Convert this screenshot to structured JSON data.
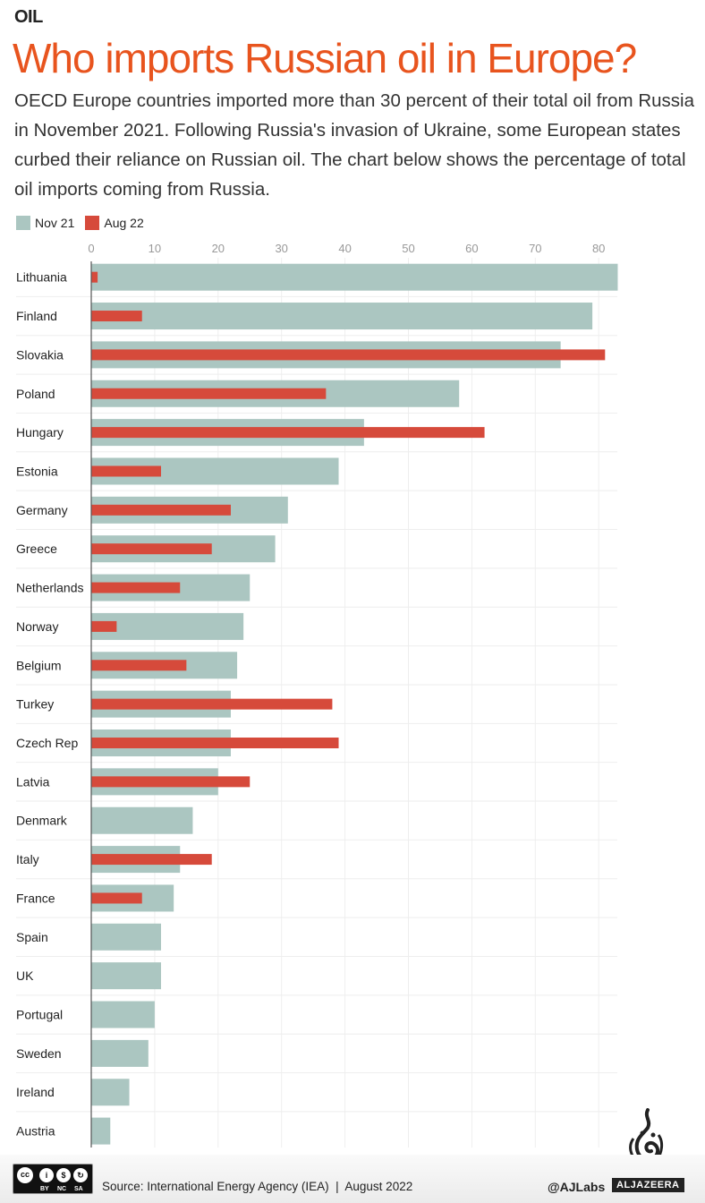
{
  "header": {
    "kicker": "OIL",
    "title": "Who imports Russian oil in Europe?",
    "subtitle": "OECD Europe countries imported more than 30 percent of their total oil from Russia in November 2021. Following Russia's invasion of Ukraine, some European states curbed their reliance on Russian oil. The chart below shows the percentage of total oil imports coming from Russia."
  },
  "legend": [
    {
      "label": "Nov 21",
      "color": "#abc6c1"
    },
    {
      "label": "Aug 22",
      "color": "#d64a3b"
    }
  ],
  "chart_data": {
    "type": "bar",
    "orientation": "horizontal",
    "title": "Who imports Russian oil in Europe?",
    "xlabel": "",
    "ylabel": "",
    "xlim": [
      0,
      83
    ],
    "xticks": [
      0,
      10,
      20,
      30,
      40,
      50,
      60,
      70,
      80
    ],
    "grid": true,
    "legend_position": "top-left",
    "categories": [
      "Lithuania",
      "Finland",
      "Slovakia",
      "Poland",
      "Hungary",
      "Estonia",
      "Germany",
      "Greece",
      "Netherlands",
      "Norway",
      "Belgium",
      "Turkey",
      "Czech Rep",
      "Latvia",
      "Denmark",
      "Italy",
      "France",
      "Spain",
      "UK",
      "Portugal",
      "Sweden",
      "Ireland",
      "Austria"
    ],
    "series": [
      {
        "name": "Nov 21",
        "color": "#abc6c1",
        "values": [
          83,
          79,
          74,
          58,
          43,
          39,
          31,
          29,
          25,
          24,
          23,
          22,
          22,
          20,
          16,
          14,
          13,
          11,
          11,
          10,
          9,
          6,
          3
        ]
      },
      {
        "name": "Aug 22",
        "color": "#d64a3b",
        "values": [
          1,
          8,
          81,
          37,
          62,
          11,
          22,
          19,
          14,
          4,
          15,
          38,
          39,
          25,
          null,
          19,
          8,
          null,
          null,
          null,
          null,
          null,
          null
        ]
      }
    ]
  },
  "footer": {
    "license_icons": [
      "cc",
      "by",
      "nc",
      "sa"
    ],
    "license_labels": [
      "BY",
      "NC",
      "SA"
    ],
    "source": "Source: International Energy Agency (IEA)  |  August 2022",
    "handle": "@AJLabs",
    "brand": "ALJAZEERA"
  }
}
